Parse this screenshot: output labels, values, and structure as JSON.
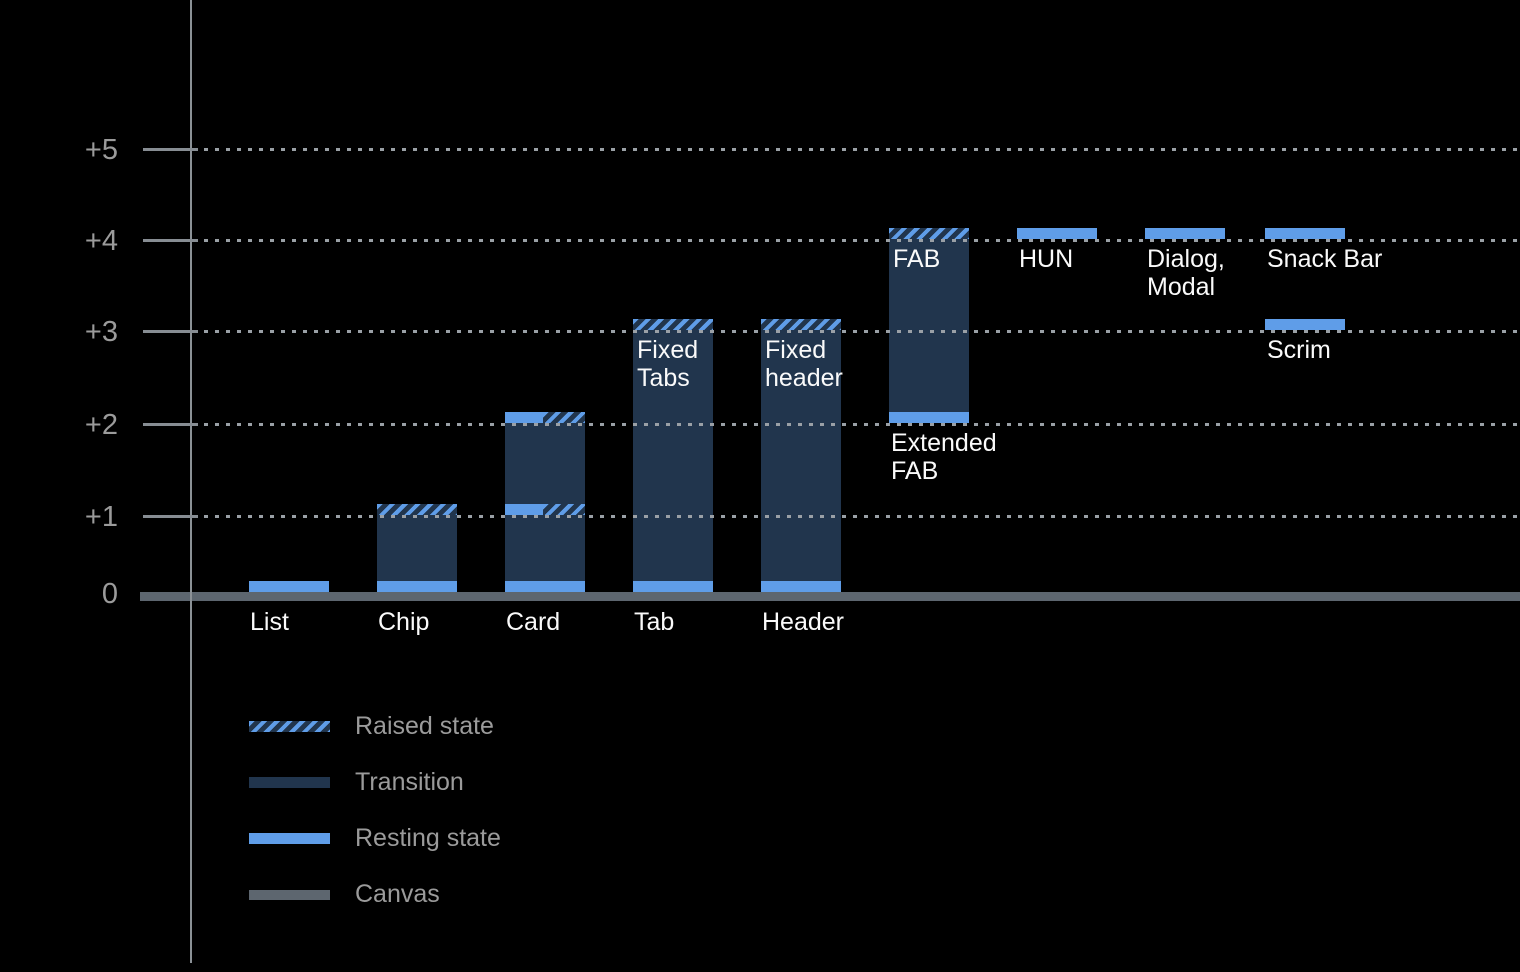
{
  "chart_data": {
    "type": "bar",
    "title": "",
    "xlabel": "",
    "ylabel": "",
    "y_axis": {
      "tick_labels": [
        "+5",
        "+4",
        "+3",
        "+2",
        "+1",
        "0"
      ],
      "levels": [
        5,
        4,
        3,
        2,
        1,
        0
      ],
      "ylim": [
        0,
        5
      ],
      "grid": "dotted horizontal lines at +1 through +5, solid canvas baseline at 0"
    },
    "categories": [
      "List",
      "Chip",
      "Card",
      "Tab",
      "Header",
      "FAB / Extended FAB",
      "HUN",
      "Dialog, Modal",
      "Snack Bar",
      "Scrim"
    ],
    "bars": [
      {
        "name": "List",
        "col": 0,
        "base": 0,
        "top": null,
        "resting_elevation": 0,
        "bands": [
          {
            "level": 0,
            "style": "blue"
          }
        ],
        "axis_label": "List",
        "inside_label": [],
        "below_label": []
      },
      {
        "name": "Chip",
        "col": 1,
        "base": 0,
        "top": 1,
        "resting_elevation": 0,
        "raised_elevation": 1,
        "bands": [
          {
            "level": 1,
            "style": "hatch"
          },
          {
            "level": 0,
            "style": "blue"
          }
        ],
        "axis_label": "Chip",
        "inside_label": [],
        "below_label": []
      },
      {
        "name": "Card",
        "col": 2,
        "base": 0,
        "top": 2,
        "resting_elevation": 1,
        "raised_elevation": 2,
        "bands": [
          {
            "level": 2,
            "style": "split"
          },
          {
            "level": 1,
            "style": "split"
          },
          {
            "level": 0,
            "style": "blue"
          }
        ],
        "axis_label": "Card",
        "inside_label": [],
        "below_label": []
      },
      {
        "name": "Tab",
        "col": 3,
        "base": 0,
        "top": 3,
        "resting_elevation": 0,
        "raised_elevation": 3,
        "bands": [
          {
            "level": 3,
            "style": "hatch"
          },
          {
            "level": 0,
            "style": "blue"
          }
        ],
        "axis_label": "Tab",
        "inside_label": [
          "Fixed",
          "Tabs"
        ],
        "below_label": []
      },
      {
        "name": "Header",
        "col": 4,
        "base": 0,
        "top": 3,
        "resting_elevation": 0,
        "raised_elevation": 3,
        "bands": [
          {
            "level": 3,
            "style": "hatch"
          },
          {
            "level": 0,
            "style": "blue"
          }
        ],
        "axis_label": "Header",
        "inside_label": [
          "Fixed",
          "header"
        ],
        "below_label": []
      },
      {
        "name": "FAB / Extended FAB",
        "col": 5,
        "base": 2,
        "top": 4,
        "resting_elevation": 2,
        "raised_elevation": 4,
        "bands": [
          {
            "level": 4,
            "style": "hatch"
          },
          {
            "level": 2,
            "style": "blue"
          }
        ],
        "axis_label": "",
        "inside_label": [
          "FAB"
        ],
        "below_label": [
          "Extended",
          "FAB"
        ]
      },
      {
        "name": "HUN",
        "col": 6,
        "base": 4,
        "top": null,
        "resting_elevation": 4,
        "bands": [
          {
            "level": 4,
            "style": "blue"
          }
        ],
        "axis_label": "",
        "inside_label": [],
        "below_label": [
          "HUN"
        ]
      },
      {
        "name": "Dialog, Modal",
        "col": 7,
        "base": 4,
        "top": null,
        "resting_elevation": 4,
        "bands": [
          {
            "level": 4,
            "style": "blue"
          }
        ],
        "axis_label": "",
        "inside_label": [],
        "below_label": [
          "Dialog,",
          "Modal"
        ]
      },
      {
        "name": "Snack Bar",
        "col": 8,
        "base": 4,
        "top": null,
        "resting_elevation": 4,
        "bands": [
          {
            "level": 4,
            "style": "blue"
          }
        ],
        "axis_label": "",
        "inside_label": [],
        "below_label": [
          "Snack Bar"
        ]
      },
      {
        "name": "Scrim",
        "col": 8,
        "base": 3,
        "top": null,
        "resting_elevation": 3,
        "bands": [
          {
            "level": 3,
            "style": "blue"
          }
        ],
        "axis_label": "",
        "inside_label": [],
        "below_label": [
          "Scrim"
        ]
      }
    ],
    "legend": {
      "position": "bottom-left",
      "items": [
        {
          "label": "Raised state",
          "style": "hatch"
        },
        {
          "label": "Transition",
          "style": "navy"
        },
        {
          "label": "Resting state",
          "style": "blue"
        },
        {
          "label": "Canvas",
          "style": "gray"
        }
      ]
    },
    "colors": {
      "background": "#000000",
      "transition": "#21354d",
      "resting": "#5f9de8",
      "canvas": "#5d666f",
      "grid": "#9aa0a6",
      "axis": "#8b9196",
      "label_gray": "#9b9b9b",
      "label_white": "#fafafa"
    }
  }
}
